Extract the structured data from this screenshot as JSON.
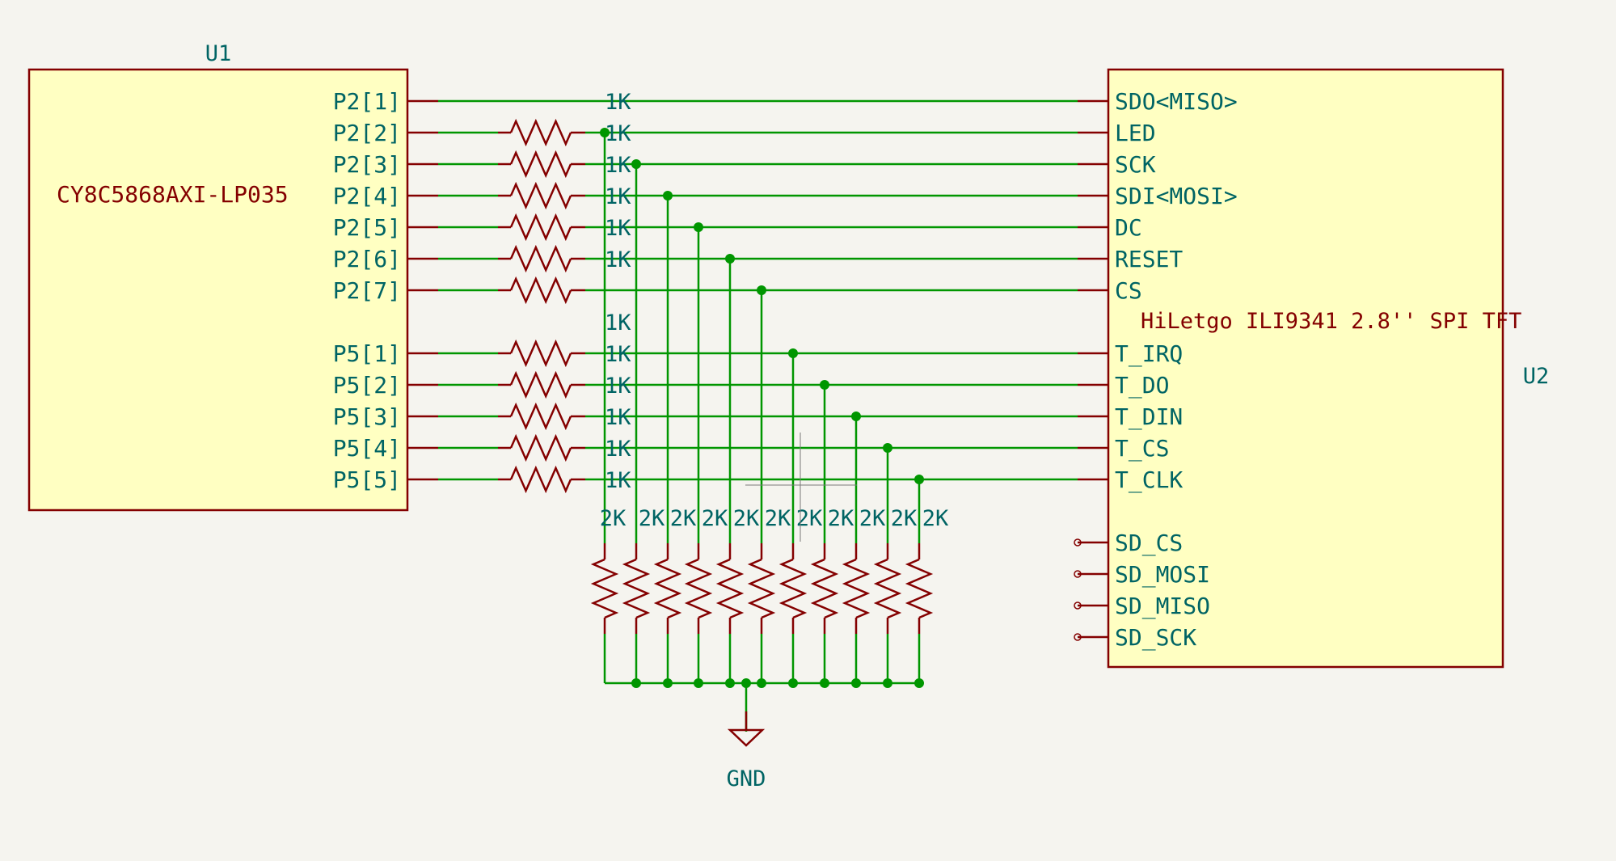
{
  "u1": {
    "ref": "U1",
    "value": "CY8C5868AXI-LP035",
    "pins": [
      "P2[1]",
      "P2[2]",
      "P2[3]",
      "P2[4]",
      "P2[5]",
      "P2[6]",
      "P2[7]",
      "P5[1]",
      "P5[2]",
      "P5[3]",
      "P5[4]",
      "P5[5]"
    ]
  },
  "u2": {
    "ref": "U2",
    "value": "HiLetgo ILI9341 2.8'' SPI TFT",
    "pins": [
      "SDO<MISO>",
      "LED",
      "SCK",
      "SDI<MOSI>",
      "DC",
      "RESET",
      "CS",
      "T_IRQ",
      "T_DO",
      "T_DIN",
      "T_CS",
      "T_CLK",
      "SD_CS",
      "SD_MOSI",
      "SD_MISO",
      "SD_SCK"
    ]
  },
  "series_resistors": {
    "labels": [
      "1K",
      "1K",
      "1K",
      "1K",
      "1K",
      "1K",
      "1K",
      "1K",
      "1K",
      "1K",
      "1K",
      "1K"
    ]
  },
  "pulldown_resistors": {
    "labels": [
      "2K",
      "2K",
      "2K",
      "2K",
      "2K",
      "2K",
      "2K",
      "2K",
      "2K",
      "2K",
      "2K"
    ]
  },
  "ground": {
    "label": "GND"
  },
  "colors": {
    "background": "#f5f4ef",
    "component_body": "#ffffc2",
    "component_outline": "#840000",
    "wire": "#009600",
    "text_teal": "#006464",
    "text_red": "#840000"
  }
}
